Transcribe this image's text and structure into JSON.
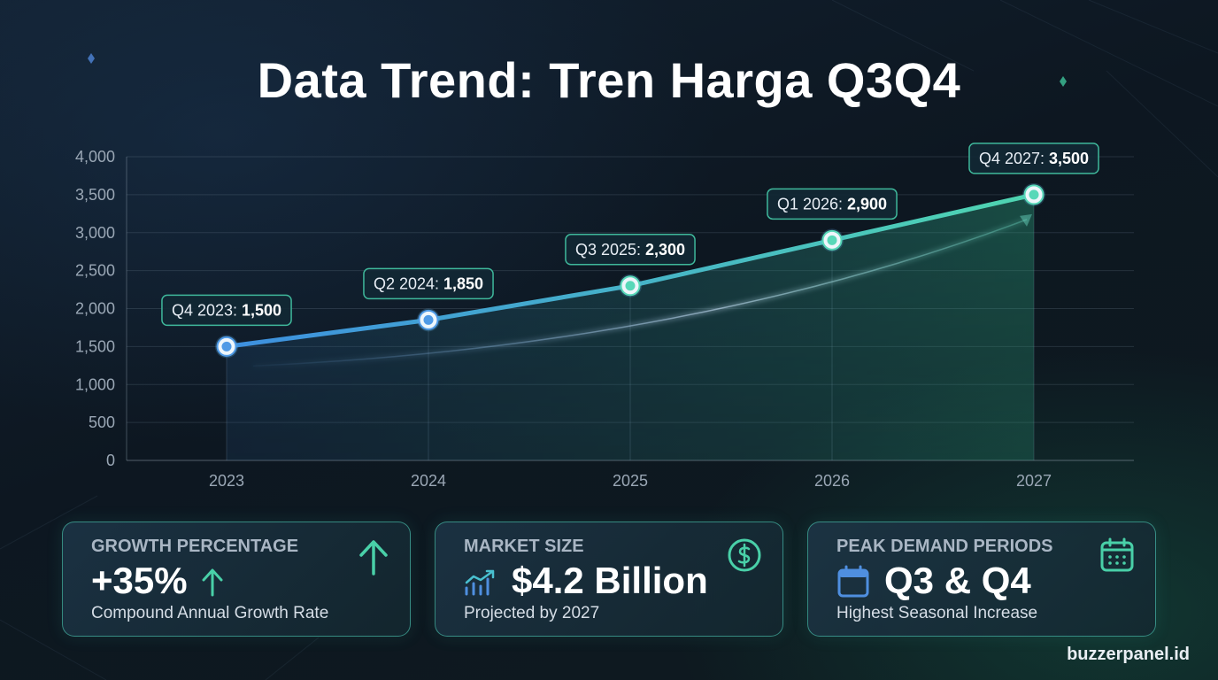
{
  "title": "Data Trend: Tren Harga Q3Q4",
  "chart_data": {
    "type": "line",
    "x": [
      2023,
      2024,
      2025,
      2026,
      2027
    ],
    "xticks": [
      "2023",
      "2024",
      "2025",
      "2026",
      "2027"
    ],
    "ylim": [
      0,
      4000
    ],
    "yticks": [
      "0",
      "500",
      "1,000",
      "1,500",
      "2,000",
      "2,500",
      "3,000",
      "3,500",
      "4,000"
    ],
    "grid": true,
    "series": [
      {
        "values": [
          1500,
          1850,
          2300,
          2900,
          3500
        ]
      }
    ],
    "data_labels": [
      {
        "period": "Q4 2023:",
        "value": "1,500"
      },
      {
        "period": "Q2 2024:",
        "value": "1,850"
      },
      {
        "period": "Q3 2025:",
        "value": "2,300"
      },
      {
        "period": "Q1 2026:",
        "value": "2,900"
      },
      {
        "period": "Q4 2027:",
        "value": "3,500"
      }
    ]
  },
  "cards": [
    {
      "label": "GROWTH PERCENTAGE",
      "value": "+35%",
      "sub": "Compound Annual Growth Rate",
      "icon": "arrow-up-icon"
    },
    {
      "label": "MARKET SIZE",
      "value": "$4.2 Billion",
      "sub": "Projected by 2027",
      "icon": "dollar-circle-icon"
    },
    {
      "label": "PEAK DEMAND PERIODS",
      "value": "Q3 & Q4",
      "sub": "Highest Seasonal Increase",
      "icon": "calendar-icon"
    }
  ],
  "footer": "buzzerpanel.id",
  "colors": {
    "line_start": "#3d8fe0",
    "line_end": "#4fd6b0",
    "card_border": "#48beaa"
  }
}
